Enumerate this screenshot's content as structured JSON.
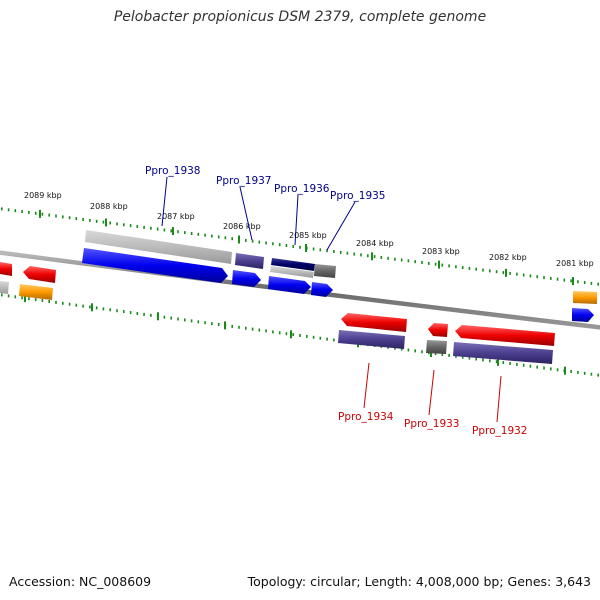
{
  "title": "Pelobacter propionicus DSM 2379, complete genome",
  "accession": "Accession: NC_008609",
  "summary": "Topology: circular; Length: 4,008,000 bp; Genes: 3,643",
  "colors": {
    "forward_gene": "#0000ee",
    "reverse_gene": "#ee0000",
    "forward_label": "#00008b",
    "reverse_label": "#cc0000",
    "tick": "#1a8a1a",
    "backbone": "#777777",
    "cds_forward": "#4b3f8f",
    "cds_reverse": "#4b3f8f",
    "rna": "#ff9900",
    "pseudo": "#999999"
  },
  "scale_labels": [
    "2089 kbp",
    "2088 kbp",
    "2087 kbp",
    "2086 kbp",
    "2085 kbp",
    "2084 kbp",
    "2083 kbp",
    "2082 kbp",
    "2081 kbp"
  ],
  "forward_genes": [
    "Ppro_1938",
    "Ppro_1937",
    "Ppro_1936",
    "Ppro_1935"
  ],
  "reverse_genes": [
    "Ppro_1934",
    "Ppro_1933",
    "Ppro_1932"
  ]
}
